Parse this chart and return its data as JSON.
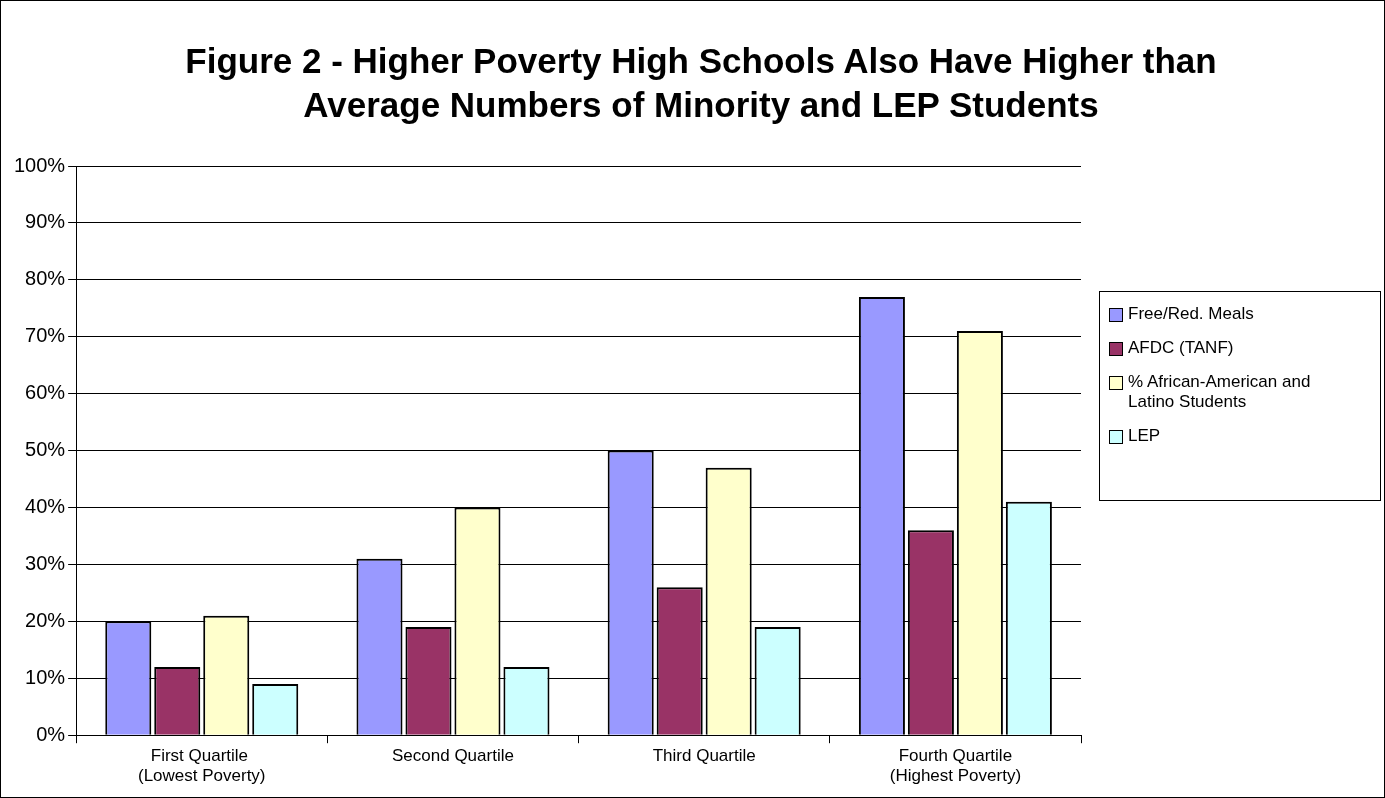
{
  "chart_data": {
    "type": "bar",
    "title": "Figure 2 - Higher Poverty High Schools Also Have Higher than Average Numbers of Minority and LEP Students",
    "categories": [
      "First Quartile  (Lowest Poverty)",
      "Second Quartile",
      "Third Quartile",
      "Fourth Quartile (Highest Poverty)"
    ],
    "series": [
      {
        "name": "Free/Red. Meals",
        "color": "#9999ff",
        "values": [
          20,
          31,
          50,
          77
        ]
      },
      {
        "name": "AFDC (TANF)",
        "color": "#993366",
        "values": [
          12,
          19,
          26,
          36
        ]
      },
      {
        "name": "% African-American and Latino Students",
        "color": "#ffffcc",
        "values": [
          21,
          40,
          47,
          71
        ]
      },
      {
        "name": "LEP",
        "color": "#ccffff",
        "values": [
          9,
          12,
          19,
          41
        ]
      }
    ],
    "ylim": [
      0,
      100
    ],
    "yticks": [
      {
        "value": 0,
        "label": "0%"
      },
      {
        "value": 10,
        "label": "10%"
      },
      {
        "value": 20,
        "label": "20%"
      },
      {
        "value": 30,
        "label": "30%"
      },
      {
        "value": 40,
        "label": "40%"
      },
      {
        "value": 50,
        "label": "50%"
      },
      {
        "value": 60,
        "label": "60%"
      },
      {
        "value": 70,
        "label": "70%"
      },
      {
        "value": 80,
        "label": "80%"
      },
      {
        "value": 90,
        "label": "90%"
      },
      {
        "value": 100,
        "label": "100%"
      }
    ],
    "grid": "y",
    "legend": "right"
  }
}
